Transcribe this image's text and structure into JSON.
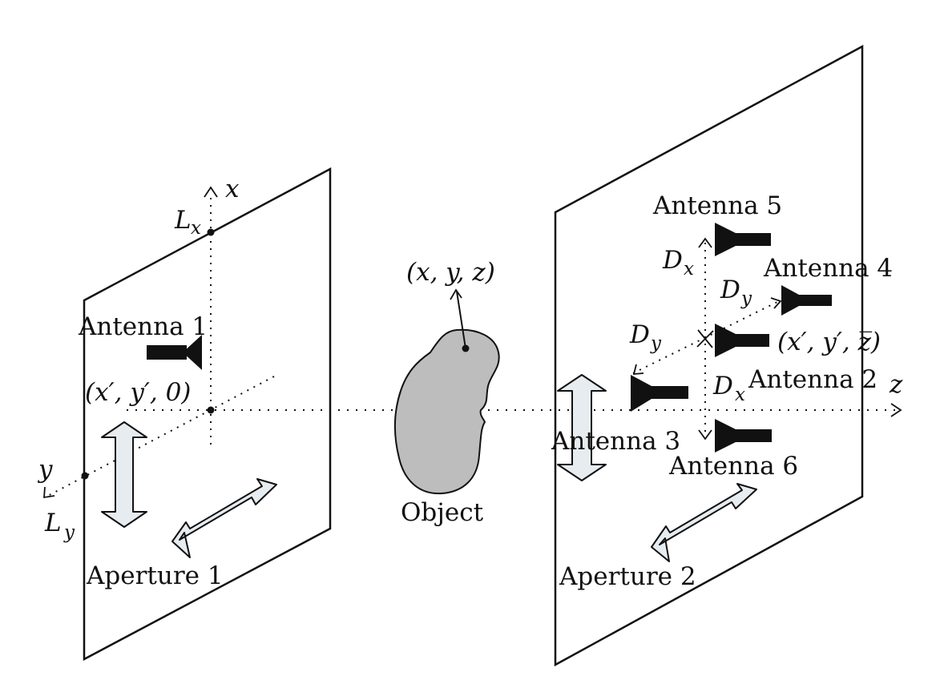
{
  "labels": {
    "x_axis": "x",
    "y_axis": "y",
    "z_axis": "z",
    "lx_main": "L",
    "lx_sub": "x",
    "ly_main": "L",
    "ly_sub": "y",
    "origin_coord": "(x′, y′, 0)",
    "object_coord": "(x, y, z)",
    "aperture2_coord": "(x′, y′, z̅)",
    "dx_top_main": "D",
    "dx_top_sub": "x",
    "dx_bottom_main": "D",
    "dx_bottom_sub": "x",
    "dy_top_main": "D",
    "dy_top_sub": "y",
    "dy_left_main": "D",
    "dy_left_sub": "y",
    "antenna1": "Antenna 1",
    "antenna2": "Antenna 2",
    "antenna3": "Antenna 3",
    "antenna4": "Antenna 4",
    "antenna5": "Antenna 5",
    "antenna6": "Antenna 6",
    "object": "Object",
    "aperture1": "Aperture 1",
    "aperture2": "Aperture 2"
  },
  "colors": {
    "line": "#111111",
    "object_fill": "#bdbdbd",
    "arrow_fill": "#e6ecef",
    "antenna": "#111111"
  }
}
